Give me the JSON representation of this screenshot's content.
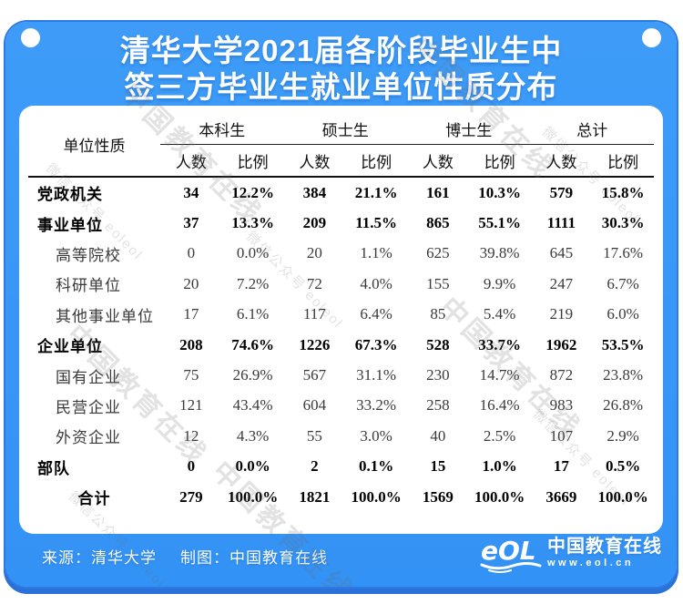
{
  "title": {
    "line1": "清华大学2021届各阶段毕业生中",
    "line2": "签三方毕业生就业单位性质分布"
  },
  "colors": {
    "card_blue": "#3897F6",
    "shadow_blue": "#2C79E0",
    "panel_white": "#FFFFFF",
    "table_text": "#111111"
  },
  "watermark": {
    "brand": "中国教育在线",
    "wechat": "微信公众号 eoleol"
  },
  "table": {
    "corner_header": "单位性质",
    "groups": [
      "本科生",
      "硕士生",
      "博士生",
      "总计"
    ],
    "sub_headers": [
      "人数",
      "比例"
    ],
    "rows": [
      {
        "label": "党政机关",
        "style": "category",
        "values": [
          "34",
          "12.2%",
          "384",
          "21.1%",
          "161",
          "10.3%",
          "579",
          "15.8%"
        ]
      },
      {
        "label": "事业单位",
        "style": "category",
        "values": [
          "37",
          "13.3%",
          "209",
          "11.5%",
          "865",
          "55.1%",
          "1111",
          "30.3%"
        ]
      },
      {
        "label": "高等院校",
        "style": "sub",
        "values": [
          "0",
          "0.0%",
          "20",
          "1.1%",
          "625",
          "39.8%",
          "645",
          "17.6%"
        ]
      },
      {
        "label": "科研单位",
        "style": "sub",
        "values": [
          "20",
          "7.2%",
          "72",
          "4.0%",
          "155",
          "9.9%",
          "247",
          "6.7%"
        ]
      },
      {
        "label": "其他事业单位",
        "style": "sub",
        "values": [
          "17",
          "6.1%",
          "117",
          "6.4%",
          "85",
          "5.4%",
          "219",
          "6.0%"
        ]
      },
      {
        "label": "企业单位",
        "style": "category",
        "values": [
          "208",
          "74.6%",
          "1226",
          "67.3%",
          "528",
          "33.7%",
          "1962",
          "53.5%"
        ]
      },
      {
        "label": "国有企业",
        "style": "sub",
        "values": [
          "75",
          "26.9%",
          "567",
          "31.1%",
          "230",
          "14.7%",
          "872",
          "23.8%"
        ]
      },
      {
        "label": "民营企业",
        "style": "sub",
        "values": [
          "121",
          "43.4%",
          "604",
          "33.2%",
          "258",
          "16.4%",
          "983",
          "26.8%"
        ]
      },
      {
        "label": "外资企业",
        "style": "sub",
        "values": [
          "12",
          "4.3%",
          "55",
          "3.0%",
          "40",
          "2.5%",
          "107",
          "2.9%"
        ]
      },
      {
        "label": "部队",
        "style": "category",
        "values": [
          "0",
          "0.0%",
          "2",
          "0.1%",
          "15",
          "1.0%",
          "17",
          "0.5%"
        ]
      },
      {
        "label": "合计",
        "style": "total",
        "values": [
          "279",
          "100.0%",
          "1821",
          "100.0%",
          "1569",
          "100.0%",
          "3669",
          "100.0%"
        ]
      }
    ]
  },
  "footer": {
    "source_label": "来源：清华大学",
    "maker_label": "制图：中国教育在线",
    "logo_text": "eOL",
    "brand_name": "中国教育在线",
    "brand_url": "www.eol.cn"
  },
  "chart_data": {
    "type": "table",
    "title": "清华大学2021届各阶段毕业生中签三方毕业生就业单位性质分布",
    "columns": [
      "单位性质",
      "本科生人数",
      "本科生比例",
      "硕士生人数",
      "硕士生比例",
      "博士生人数",
      "博士生比例",
      "总计人数",
      "总计比例"
    ],
    "rows": [
      [
        "党政机关",
        34,
        "12.2%",
        384,
        "21.1%",
        161,
        "10.3%",
        579,
        "15.8%"
      ],
      [
        "事业单位",
        37,
        "13.3%",
        209,
        "11.5%",
        865,
        "55.1%",
        1111,
        "30.3%"
      ],
      [
        "高等院校",
        0,
        "0.0%",
        20,
        "1.1%",
        625,
        "39.8%",
        645,
        "17.6%"
      ],
      [
        "科研单位",
        20,
        "7.2%",
        72,
        "4.0%",
        155,
        "9.9%",
        247,
        "6.7%"
      ],
      [
        "其他事业单位",
        17,
        "6.1%",
        117,
        "6.4%",
        85,
        "5.4%",
        219,
        "6.0%"
      ],
      [
        "企业单位",
        208,
        "74.6%",
        1226,
        "67.3%",
        528,
        "33.7%",
        1962,
        "53.5%"
      ],
      [
        "国有企业",
        75,
        "26.9%",
        567,
        "31.1%",
        230,
        "14.7%",
        872,
        "23.8%"
      ],
      [
        "民营企业",
        121,
        "43.4%",
        604,
        "33.2%",
        258,
        "16.4%",
        983,
        "26.8%"
      ],
      [
        "外资企业",
        12,
        "4.3%",
        55,
        "3.0%",
        40,
        "2.5%",
        107,
        "2.9%"
      ],
      [
        "部队",
        0,
        "0.0%",
        2,
        "0.1%",
        15,
        "1.0%",
        17,
        "0.5%"
      ],
      [
        "合计",
        279,
        "100.0%",
        1821,
        "100.0%",
        1569,
        "100.0%",
        3669,
        "100.0%"
      ]
    ]
  }
}
